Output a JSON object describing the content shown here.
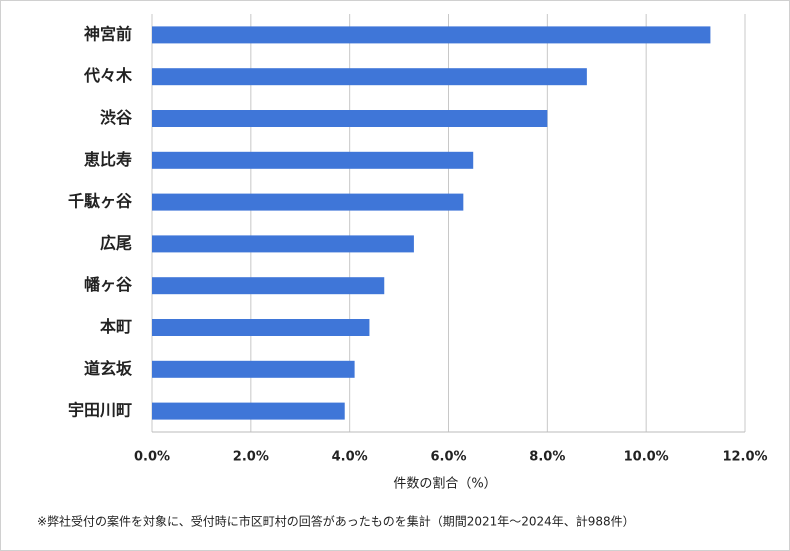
{
  "chart_data": {
    "type": "bar",
    "orientation": "horizontal",
    "categories": [
      "神宮前",
      "代々木",
      "渋谷",
      "恵比寿",
      "千駄ヶ谷",
      "広尾",
      "幡ヶ谷",
      "本町",
      "道玄坂",
      "宇田川町"
    ],
    "values": [
      11.3,
      8.8,
      8.0,
      6.5,
      6.3,
      5.3,
      4.7,
      4.4,
      4.1,
      3.9
    ],
    "color": "#3f76d8",
    "xlim": [
      0,
      12
    ],
    "xticks": [
      {
        "value": 0,
        "label": "0.0%"
      },
      {
        "value": 2,
        "label": "2.0%"
      },
      {
        "value": 4,
        "label": "4.0%"
      },
      {
        "value": 6,
        "label": "6.0%"
      },
      {
        "value": 8,
        "label": "8.0%"
      },
      {
        "value": 10,
        "label": "10.0%"
      },
      {
        "value": 12,
        "label": "12.0%"
      }
    ],
    "x_label": "件数の割合（%）",
    "note": "※弊社受付の案件を対象に、受付時に市区町村の回答があったものを集計（期間2021年～2024年、計988件）",
    "grid": true
  }
}
